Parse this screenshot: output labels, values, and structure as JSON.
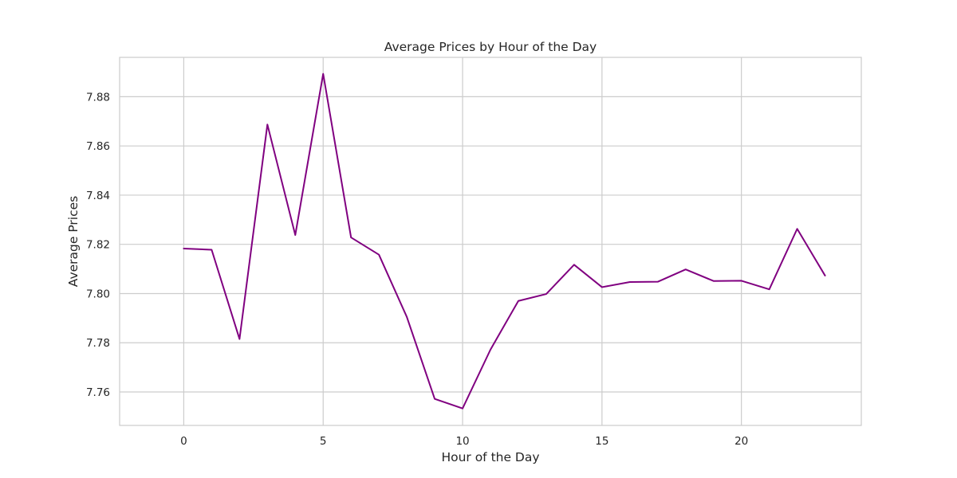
{
  "chart_data": {
    "type": "line",
    "title": "Average Prices by Hour of the Day",
    "xlabel": "Hour of the Day",
    "ylabel": "Average Prices",
    "x": [
      0,
      1,
      2,
      3,
      4,
      5,
      6,
      7,
      8,
      9,
      10,
      11,
      12,
      13,
      14,
      15,
      16,
      17,
      18,
      19,
      20,
      21,
      22,
      23
    ],
    "series": [
      {
        "values": [
          7.8183,
          7.8178,
          7.7815,
          7.8687,
          7.8238,
          7.8893,
          7.8228,
          7.8158,
          7.7905,
          7.7572,
          7.7533,
          7.7772,
          7.797,
          7.7998,
          7.8117,
          7.8026,
          7.8047,
          7.8048,
          7.8098,
          7.8051,
          7.8052,
          7.8017,
          7.8263,
          7.8073
        ],
        "color": "#800080"
      }
    ],
    "xlim": [
      -2.3,
      24.3
    ],
    "ylim": [
      7.7464,
      7.896
    ],
    "xticks": [
      0,
      5,
      10,
      15,
      20
    ],
    "xtick_labels": [
      "0",
      "5",
      "10",
      "15",
      "20"
    ],
    "yticks": [
      7.76,
      7.78,
      7.8,
      7.82,
      7.84,
      7.86,
      7.88
    ],
    "ytick_labels": [
      "7.76",
      "7.78",
      "7.80",
      "7.82",
      "7.84",
      "7.86",
      "7.88"
    ],
    "grid": true,
    "grid_color": "#cccccc",
    "frame_color": "#cccccc",
    "text_color": "#262626",
    "legend": "none"
  }
}
